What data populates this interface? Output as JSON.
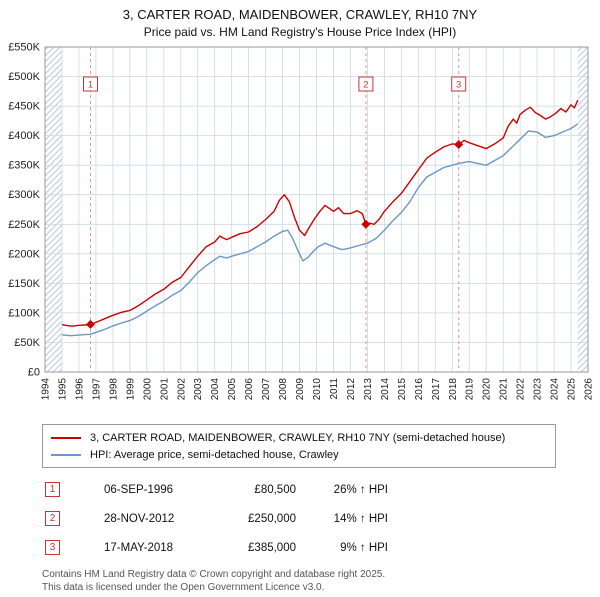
{
  "title": "3, CARTER ROAD, MAIDENBOWER, CRAWLEY, RH10 7NY",
  "subtitle": "Price paid vs. HM Land Registry's House Price Index (HPI)",
  "transactions": [
    {
      "num": "1",
      "date": "06-SEP-1996",
      "price": "£80,500",
      "hpi": "26% ↑ HPI"
    },
    {
      "num": "2",
      "date": "28-NOV-2012",
      "price": "£250,000",
      "hpi": "14% ↑ HPI"
    },
    {
      "num": "3",
      "date": "17-MAY-2018",
      "price": "£385,000",
      "hpi": "9% ↑ HPI"
    }
  ],
  "footer": {
    "line1": "Contains HM Land Registry data © Crown copyright and database right 2025.",
    "line2": "This data is licensed under the Open Government Licence v3.0."
  },
  "chart_data": {
    "type": "line",
    "title": "3, CARTER ROAD, MAIDENBOWER, CRAWLEY, RH10 7NY",
    "subtitle": "Price paid vs. HM Land Registry's House Price Index (HPI)",
    "ylim": [
      0,
      550000
    ],
    "ytick_step": 50000,
    "ytick_labels": [
      "£0",
      "£50K",
      "£100K",
      "£150K",
      "£200K",
      "£250K",
      "£300K",
      "£350K",
      "£400K",
      "£450K",
      "£500K",
      "£550K"
    ],
    "x_range": [
      1994,
      2026
    ],
    "x_years": [
      1994,
      1995,
      1996,
      1997,
      1998,
      1999,
      2000,
      2001,
      2002,
      2003,
      2004,
      2005,
      2006,
      2007,
      2008,
      2009,
      2010,
      2011,
      2012,
      2013,
      2014,
      2015,
      2016,
      2017,
      2018,
      2019,
      2020,
      2021,
      2022,
      2023,
      2024,
      2025,
      2026
    ],
    "data_range": [
      1995.0,
      2025.4
    ],
    "grid": true,
    "legend_position": "bottom",
    "colors": {
      "grid": "#ccd9e6",
      "frame": "#999999",
      "hatch": "#b9c7da",
      "sale_line": "#e09999",
      "sale_box": "#cc3333"
    },
    "sales": [
      {
        "num": "1",
        "year": 1996.68,
        "price": 80500
      },
      {
        "num": "2",
        "year": 2012.91,
        "price": 250000
      },
      {
        "num": "3",
        "year": 2018.38,
        "price": 385000
      }
    ],
    "series": [
      {
        "name": "3, CARTER ROAD, MAIDENBOWER, CRAWLEY, RH10 7NY (semi-detached house)",
        "color": "#cc0000",
        "points": [
          [
            1995.0,
            80000
          ],
          [
            1995.3,
            78500
          ],
          [
            1995.6,
            77500
          ],
          [
            1996.0,
            79000
          ],
          [
            1996.4,
            79500
          ],
          [
            1996.68,
            80500
          ],
          [
            1997.0,
            84000
          ],
          [
            1997.5,
            90000
          ],
          [
            1998.0,
            96000
          ],
          [
            1998.5,
            101000
          ],
          [
            1999.0,
            104000
          ],
          [
            1999.5,
            112000
          ],
          [
            2000.0,
            122000
          ],
          [
            2000.5,
            132000
          ],
          [
            2001.0,
            140000
          ],
          [
            2001.5,
            152000
          ],
          [
            2002.0,
            160000
          ],
          [
            2002.5,
            178000
          ],
          [
            2003.0,
            196000
          ],
          [
            2003.5,
            212000
          ],
          [
            2004.0,
            220000
          ],
          [
            2004.3,
            230000
          ],
          [
            2004.7,
            224000
          ],
          [
            2005.0,
            228000
          ],
          [
            2005.5,
            234000
          ],
          [
            2006.0,
            237000
          ],
          [
            2006.5,
            246000
          ],
          [
            2007.0,
            258000
          ],
          [
            2007.5,
            272000
          ],
          [
            2007.8,
            290000
          ],
          [
            2008.1,
            300000
          ],
          [
            2008.4,
            288000
          ],
          [
            2008.7,
            262000
          ],
          [
            2009.0,
            240000
          ],
          [
            2009.3,
            231000
          ],
          [
            2009.6,
            246000
          ],
          [
            2009.9,
            260000
          ],
          [
            2010.2,
            272000
          ],
          [
            2010.5,
            282000
          ],
          [
            2010.8,
            276000
          ],
          [
            2011.0,
            272000
          ],
          [
            2011.3,
            278000
          ],
          [
            2011.6,
            268000
          ],
          [
            2012.0,
            268000
          ],
          [
            2012.4,
            273000
          ],
          [
            2012.7,
            268000
          ],
          [
            2012.91,
            250000
          ],
          [
            2013.1,
            252000
          ],
          [
            2013.4,
            250000
          ],
          [
            2013.7,
            259000
          ],
          [
            2014.0,
            272000
          ],
          [
            2014.5,
            288000
          ],
          [
            2015.0,
            302000
          ],
          [
            2015.5,
            322000
          ],
          [
            2016.0,
            342000
          ],
          [
            2016.5,
            362000
          ],
          [
            2017.0,
            372000
          ],
          [
            2017.5,
            381000
          ],
          [
            2018.0,
            386000
          ],
          [
            2018.38,
            385000
          ],
          [
            2018.7,
            392000
          ],
          [
            2019.0,
            388000
          ],
          [
            2019.5,
            383000
          ],
          [
            2020.0,
            378000
          ],
          [
            2020.5,
            386000
          ],
          [
            2021.0,
            396000
          ],
          [
            2021.3,
            416000
          ],
          [
            2021.6,
            428000
          ],
          [
            2021.8,
            421000
          ],
          [
            2022.0,
            436000
          ],
          [
            2022.3,
            443000
          ],
          [
            2022.6,
            448000
          ],
          [
            2022.9,
            439000
          ],
          [
            2023.2,
            434000
          ],
          [
            2023.5,
            428000
          ],
          [
            2023.8,
            432000
          ],
          [
            2024.1,
            438000
          ],
          [
            2024.4,
            446000
          ],
          [
            2024.7,
            440000
          ],
          [
            2025.0,
            452000
          ],
          [
            2025.2,
            447000
          ],
          [
            2025.4,
            460000
          ]
        ]
      },
      {
        "name": "HPI: Average price, semi-detached house, Crawley",
        "color": "#6b96c8",
        "points": [
          [
            1995.0,
            63000
          ],
          [
            1995.5,
            61500
          ],
          [
            1996.0,
            62500
          ],
          [
            1996.68,
            64000
          ],
          [
            1997.0,
            67000
          ],
          [
            1997.5,
            72000
          ],
          [
            1998.0,
            78000
          ],
          [
            1998.5,
            83000
          ],
          [
            1999.0,
            87000
          ],
          [
            1999.5,
            94000
          ],
          [
            2000.0,
            103000
          ],
          [
            2000.5,
            112000
          ],
          [
            2001.0,
            120000
          ],
          [
            2001.5,
            130000
          ],
          [
            2002.0,
            138000
          ],
          [
            2002.5,
            152000
          ],
          [
            2003.0,
            168000
          ],
          [
            2003.5,
            180000
          ],
          [
            2004.0,
            190000
          ],
          [
            2004.3,
            196000
          ],
          [
            2004.7,
            193000
          ],
          [
            2005.0,
            196000
          ],
          [
            2005.5,
            200000
          ],
          [
            2006.0,
            204000
          ],
          [
            2006.5,
            212000
          ],
          [
            2007.0,
            220000
          ],
          [
            2007.5,
            230000
          ],
          [
            2008.0,
            238000
          ],
          [
            2008.3,
            240000
          ],
          [
            2008.6,
            226000
          ],
          [
            2008.9,
            206000
          ],
          [
            2009.2,
            188000
          ],
          [
            2009.5,
            194000
          ],
          [
            2009.8,
            204000
          ],
          [
            2010.1,
            212000
          ],
          [
            2010.5,
            218000
          ],
          [
            2011.0,
            212000
          ],
          [
            2011.5,
            207000
          ],
          [
            2012.0,
            210000
          ],
          [
            2012.5,
            214000
          ],
          [
            2013.0,
            218000
          ],
          [
            2013.5,
            226000
          ],
          [
            2014.0,
            240000
          ],
          [
            2014.5,
            256000
          ],
          [
            2015.0,
            270000
          ],
          [
            2015.5,
            288000
          ],
          [
            2016.0,
            312000
          ],
          [
            2016.5,
            330000
          ],
          [
            2017.0,
            338000
          ],
          [
            2017.5,
            346000
          ],
          [
            2018.0,
            350000
          ],
          [
            2018.38,
            353000
          ],
          [
            2019.0,
            356000
          ],
          [
            2019.5,
            353000
          ],
          [
            2020.0,
            350000
          ],
          [
            2020.5,
            358000
          ],
          [
            2021.0,
            366000
          ],
          [
            2021.5,
            380000
          ],
          [
            2022.0,
            394000
          ],
          [
            2022.5,
            408000
          ],
          [
            2023.0,
            406000
          ],
          [
            2023.5,
            397000
          ],
          [
            2024.0,
            400000
          ],
          [
            2024.5,
            406000
          ],
          [
            2025.0,
            412000
          ],
          [
            2025.4,
            420000
          ]
        ]
      }
    ]
  }
}
